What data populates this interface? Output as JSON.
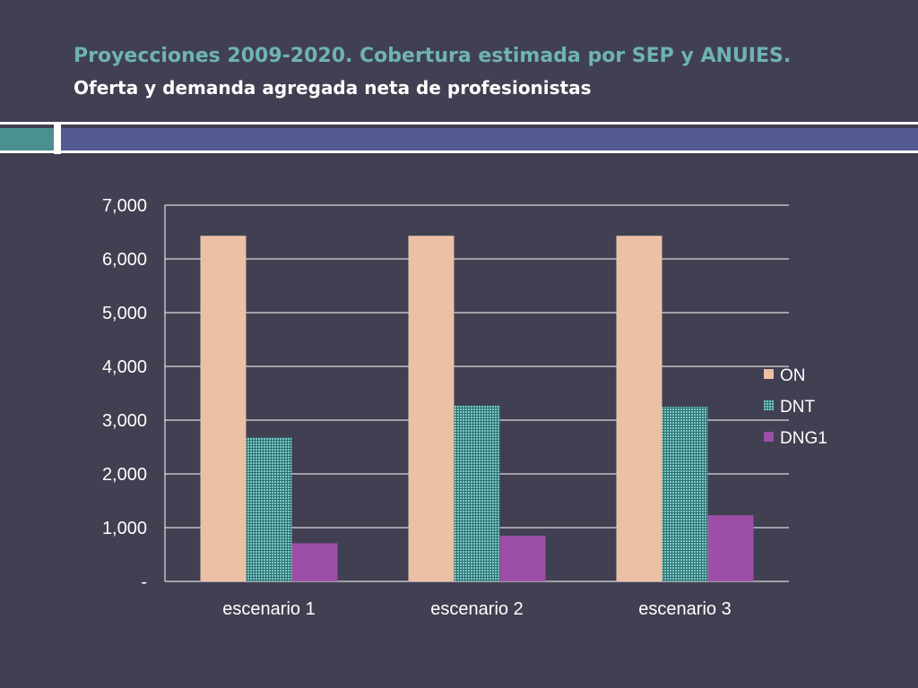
{
  "header": {
    "title": "Proyecciones 2009-2020. Cobertura estimada por SEP y ANUIES.",
    "subtitle": "Oferta y demanda agregada neta de profesionistas"
  },
  "colors": {
    "background": "#404052",
    "title": "#6fb3b4",
    "accent_teal": "#4b9090",
    "accent_purple": "#535a8f"
  },
  "chart_data": {
    "type": "bar",
    "categories": [
      "escenario 1",
      "escenario 2",
      "escenario 3"
    ],
    "series": [
      {
        "name": "ON",
        "values": [
          6430,
          6430,
          6430
        ],
        "color": "#ecc0a4",
        "pattern": "solid"
      },
      {
        "name": "DNT",
        "values": [
          2680,
          3270,
          3250
        ],
        "color": "#52a7a7",
        "pattern": "dotted"
      },
      {
        "name": "DNG1",
        "values": [
          710,
          850,
          1230
        ],
        "color": "#9c4fa6",
        "pattern": "solid"
      }
    ],
    "ylim": [
      0,
      7000
    ],
    "yticks": [
      0,
      1000,
      2000,
      3000,
      4000,
      5000,
      6000,
      7000
    ],
    "ytick_labels": [
      "-",
      "1,000",
      "2,000",
      "3,000",
      "4,000",
      "5,000",
      "6,000",
      "7,000"
    ],
    "grid": true,
    "legend": "right"
  }
}
